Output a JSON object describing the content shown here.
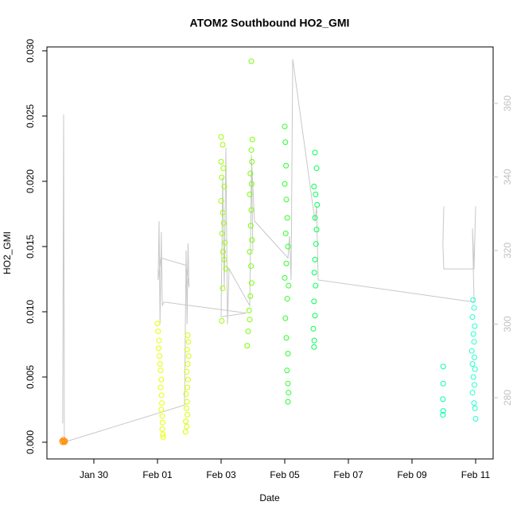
{
  "chart_data": {
    "type": "scatter",
    "title": "ATOM2 Southbound HO2_GMI",
    "xlabel": "Date",
    "ylabel": "HO2_GMI",
    "xlim": [
      28.525,
      42.55
    ],
    "ylim": [
      -0.00128,
      0.0303
    ],
    "y2lim": [
      263.35,
      375.35
    ],
    "xticks": [
      {
        "value": 30,
        "label": "Jan 30"
      },
      {
        "value": 32,
        "label": "Feb 01"
      },
      {
        "value": 34,
        "label": "Feb 03"
      },
      {
        "value": 36,
        "label": "Feb 05"
      },
      {
        "value": 38,
        "label": "Feb 07"
      },
      {
        "value": 40,
        "label": "Feb 09"
      },
      {
        "value": 42,
        "label": "Feb 11"
      }
    ],
    "yticks": [
      {
        "value": 0,
        "label": "0.000"
      },
      {
        "value": 0.005,
        "label": "0.005"
      },
      {
        "value": 0.01,
        "label": "0.010"
      },
      {
        "value": 0.015,
        "label": "0.015"
      },
      {
        "value": 0.02,
        "label": "0.020"
      },
      {
        "value": 0.025,
        "label": "0.025"
      },
      {
        "value": 0.03,
        "label": "0.030"
      }
    ],
    "y2ticks": [
      280,
      300,
      320,
      340,
      360
    ],
    "series": [
      {
        "type": "line",
        "axis": "y2",
        "color": "#c8c8c8",
        "x": [
          29.02,
          29.05,
          29.07,
          29.1,
          32.85,
          32.9,
          32.93,
          32.96,
          32.99,
          32.9,
          32.1,
          32.02,
          32.05,
          32.08,
          32.12,
          32.15,
          32.2,
          34.8,
          34.0,
          34.05,
          34.1,
          34.15,
          34.2,
          34.25,
          34.9,
          34.95,
          35.0,
          34.95,
          35.05,
          36.1,
          36.15,
          36.2,
          36.25,
          36.95,
          37.0,
          37.05,
          41.95,
          41.9,
          41.95,
          42.0,
          41.95,
          41.0,
          40.97,
          41.0
        ],
        "values": [
          273,
          357,
          270,
          268,
          278,
          320,
          300,
          322,
          310,
          316,
          318,
          312,
          328,
          300,
          325,
          305,
          306,
          303,
          302,
          340,
          310,
          348,
          300,
          315,
          305,
          342,
          320,
          346,
          328,
          318,
          324,
          312,
          372,
          328,
          332,
          312,
          306,
          326,
          316,
          332,
          315,
          315,
          322,
          332
        ]
      },
      {
        "color": "#ff8c00",
        "x": [
          29.0,
          29.02,
          29.04,
          29.06,
          29.08,
          29.1
        ],
        "values": [
          0.0001,
          0.0,
          0.0002,
          0.0001,
          0.0,
          0.0001
        ]
      },
      {
        "color": "#e6ff00",
        "x": [
          32.0,
          32.02,
          32.05,
          32.03,
          32.06,
          32.08,
          32.1,
          32.12,
          32.1,
          32.13,
          32.14,
          32.12,
          32.15,
          32.16,
          32.15,
          32.17,
          32.18
        ],
        "values": [
          0.0091,
          0.0085,
          0.0078,
          0.0072,
          0.0066,
          0.006,
          0.0055,
          0.0048,
          0.0042,
          0.0036,
          0.003,
          0.0025,
          0.002,
          0.0015,
          0.001,
          0.0006,
          0.0004
        ]
      },
      {
        "color": "#d4ff00",
        "x": [
          32.95,
          32.97,
          32.93,
          32.98,
          32.95,
          32.92,
          32.96,
          32.94,
          32.9,
          32.93,
          32.91,
          32.94,
          32.89,
          32.92,
          32.88
        ],
        "values": [
          0.0082,
          0.0077,
          0.0071,
          0.0066,
          0.006,
          0.0054,
          0.0048,
          0.0042,
          0.0037,
          0.0031,
          0.0026,
          0.0021,
          0.0016,
          0.0012,
          0.0008
        ]
      },
      {
        "color": "#99ff00",
        "x": [
          34.0,
          34.05,
          34.0,
          34.07,
          34.02,
          34.1,
          34.0,
          34.05,
          34.08,
          34.03,
          34.12,
          34.06,
          34.1,
          34.15,
          34.05,
          34.02
        ],
        "values": [
          0.0234,
          0.0228,
          0.0215,
          0.021,
          0.0203,
          0.0196,
          0.0185,
          0.0176,
          0.0168,
          0.016,
          0.0153,
          0.0146,
          0.014,
          0.0133,
          0.0118,
          0.0093
        ]
      },
      {
        "color": "#77ff00",
        "x": [
          34.95,
          34.98,
          34.95,
          34.97,
          34.92,
          34.96,
          34.9,
          34.95,
          34.93,
          34.97,
          34.9,
          34.94,
          34.96,
          34.92,
          34.88,
          34.9,
          34.85,
          34.82
        ],
        "values": [
          0.0292,
          0.0232,
          0.0224,
          0.0215,
          0.0206,
          0.0198,
          0.019,
          0.0178,
          0.0166,
          0.0155,
          0.0146,
          0.0135,
          0.0122,
          0.0112,
          0.0101,
          0.0094,
          0.0085,
          0.0074
        ]
      },
      {
        "color": "#2aff2a",
        "x": [
          36.0,
          36.02,
          36.04,
          36.0,
          36.05,
          36.08,
          36.03,
          36.1,
          36.05,
          36.0,
          36.12,
          36.08,
          36.02,
          36.05,
          36.1,
          36.07,
          36.1,
          36.12,
          36.1
        ],
        "values": [
          0.0242,
          0.023,
          0.0212,
          0.0198,
          0.0186,
          0.0172,
          0.016,
          0.015,
          0.0137,
          0.0126,
          0.012,
          0.011,
          0.0095,
          0.008,
          0.0068,
          0.0055,
          0.0045,
          0.0038,
          0.0031
        ]
      },
      {
        "color": "#00ff55",
        "x": [
          36.95,
          37.0,
          36.92,
          36.97,
          37.02,
          36.95,
          37.0,
          36.98,
          36.95,
          36.93,
          36.97,
          36.92,
          36.95,
          36.9,
          36.93,
          36.92
        ],
        "values": [
          0.0222,
          0.021,
          0.0196,
          0.019,
          0.0182,
          0.0172,
          0.0163,
          0.0152,
          0.014,
          0.013,
          0.012,
          0.0108,
          0.0097,
          0.0087,
          0.0078,
          0.0073
        ]
      },
      {
        "color": "#00ffaa",
        "x": [
          40.98,
          40.98,
          40.97,
          40.98,
          40.97
        ],
        "values": [
          0.0058,
          0.0045,
          0.0033,
          0.0024,
          0.0021
        ]
      },
      {
        "color": "#22ffcc",
        "x": [
          41.92,
          41.95,
          41.9,
          41.97,
          41.93,
          41.95,
          41.88,
          41.96,
          41.9,
          41.98,
          41.93,
          41.96,
          41.9,
          41.95,
          41.98,
          42.0
        ],
        "values": [
          0.0109,
          0.0103,
          0.0096,
          0.0089,
          0.0083,
          0.0077,
          0.007,
          0.0065,
          0.006,
          0.0056,
          0.005,
          0.0044,
          0.0038,
          0.003,
          0.0026,
          0.0018
        ]
      }
    ]
  }
}
